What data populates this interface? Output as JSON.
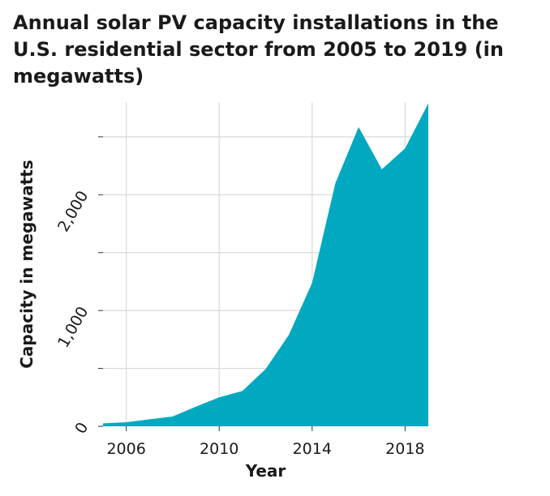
{
  "chart_data": {
    "type": "area",
    "title": "Annual solar PV capacity installations in the U.S. residential sector from 2005 to 2019 (in megawatts)",
    "xlabel": "Year",
    "ylabel": "Capacity in megawatts",
    "x": [
      2005,
      2006,
      2007,
      2008,
      2009,
      2010,
      2011,
      2012,
      2013,
      2014,
      2015,
      2016,
      2017,
      2018,
      2019
    ],
    "series": [
      {
        "values": [
          25,
          35,
          60,
          85,
          170,
          250,
          305,
          495,
          790,
          1240,
          2100,
          2585,
          2220,
          2400,
          2790
        ]
      }
    ],
    "xlim": [
      2005,
      2019
    ],
    "ylim": [
      0,
      2800
    ],
    "x_ticks": [
      2006,
      2010,
      2014,
      2018
    ],
    "x_tick_labels": [
      "2006",
      "2010",
      "2014",
      "2018"
    ],
    "y_ticks": [
      0,
      1000,
      2000
    ],
    "y_tick_labels": [
      "0",
      "1,000",
      "2,000"
    ],
    "y_gridlines": [
      500,
      1000,
      1500,
      2000,
      2500
    ],
    "grid": true,
    "fill_color": "#00a8c0",
    "grid_color": "#d9d9d9",
    "background_color": "#ffffff"
  }
}
